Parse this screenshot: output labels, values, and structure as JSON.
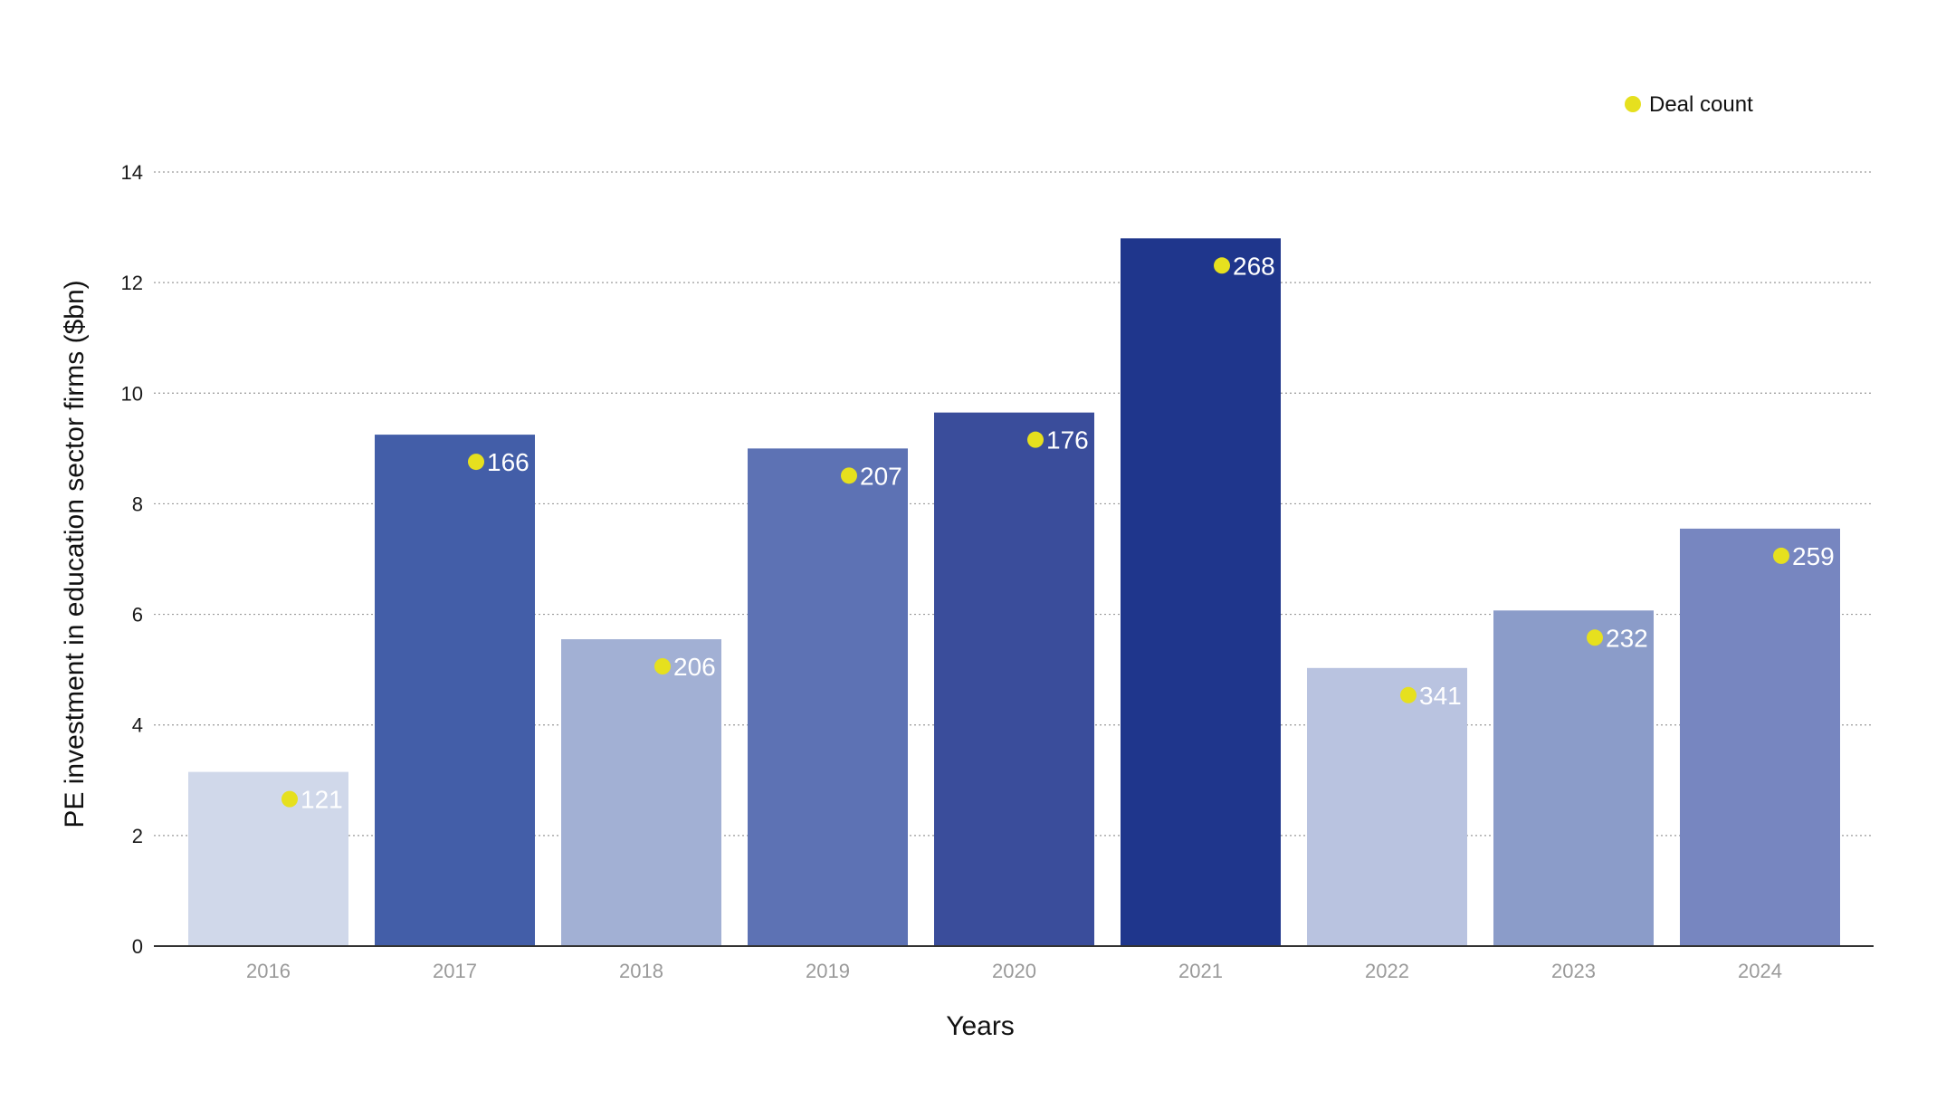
{
  "chart_data": {
    "type": "bar",
    "title": "",
    "xlabel": "Years",
    "ylabel": "PE investment in education sector firms ($bn)",
    "ylim": [
      0,
      14
    ],
    "yticks": [
      0,
      2,
      4,
      6,
      8,
      10,
      12,
      14
    ],
    "grid": "horizontal dotted",
    "legend_position": "top-right",
    "categories": [
      "2016",
      "2017",
      "2018",
      "2019",
      "2020",
      "2021",
      "2022",
      "2023",
      "2024"
    ],
    "series": [
      {
        "values": [
          3.15,
          9.25,
          5.55,
          9.0,
          9.65,
          12.8,
          5.03,
          6.07,
          7.55
        ]
      },
      {
        "name": "Deal count",
        "values": [
          121,
          166,
          206,
          207,
          176,
          268,
          341,
          232,
          259
        ],
        "labels": [
          "121",
          "166",
          "206",
          "207",
          "176",
          "268",
          "341",
          "232",
          "259"
        ]
      }
    ],
    "legend": [
      {
        "label": "Deal count",
        "marker": "circle"
      }
    ],
    "colors": {
      "bars": [
        "#d0d8ea",
        "#435ea8",
        "#a2b0d4",
        "#5d72b4",
        "#3a4d9b",
        "#1f368c",
        "#b9c3e0",
        "#8b9cc9",
        "#7786c0"
      ],
      "marker": "#e6e01e",
      "grid": "#9a9a9a",
      "axis": "#333333"
    }
  }
}
